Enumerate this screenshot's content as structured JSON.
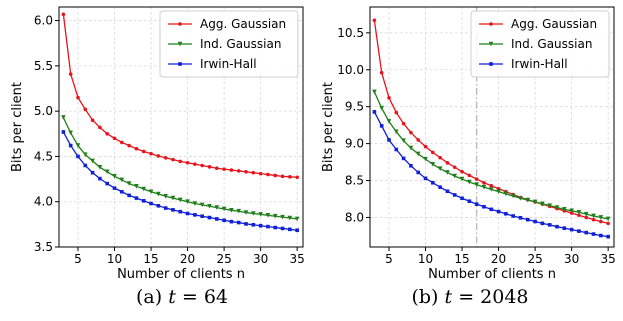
{
  "colors": {
    "agg": "#e8141c",
    "ind": "#1f7f1a",
    "irwin": "#1020d8",
    "grid": "#d6d6d6",
    "vline": "#b4b4b4"
  },
  "chart_data": [
    {
      "type": "line",
      "caption_prefix": "(a)",
      "caption_var": "t",
      "caption_eq": " = 64",
      "xlabel": "Number of clients n",
      "ylabel": "Bits per client",
      "xlim": [
        2.4,
        35.8
      ],
      "ylim": [
        3.5,
        6.15
      ],
      "xticks": [
        5,
        10,
        15,
        20,
        25,
        30,
        35
      ],
      "yticks": [
        3.5,
        4.0,
        4.5,
        5.0,
        5.5,
        6.0
      ],
      "ytick_labels": [
        "3.5",
        "4.0",
        "4.5",
        "5.0",
        "5.5",
        "6.0"
      ],
      "grid": true,
      "legend_position": "top-right",
      "x": [
        3,
        4,
        5,
        6,
        7,
        8,
        9,
        10,
        11,
        12,
        13,
        14,
        15,
        16,
        17,
        18,
        19,
        20,
        21,
        22,
        23,
        24,
        25,
        26,
        27,
        28,
        29,
        30,
        31,
        32,
        33,
        34,
        35
      ],
      "series": [
        {
          "name": "Agg. Gaussian",
          "color_key": "agg",
          "marker": "dot",
          "values": [
            6.07,
            5.41,
            5.15,
            5.02,
            4.9,
            4.82,
            4.75,
            4.7,
            4.655,
            4.62,
            4.585,
            4.555,
            4.53,
            4.505,
            4.485,
            4.465,
            4.445,
            4.43,
            4.415,
            4.4,
            4.385,
            4.37,
            4.36,
            4.35,
            4.34,
            4.33,
            4.32,
            4.31,
            4.3,
            4.29,
            4.28,
            4.275,
            4.27
          ]
        },
        {
          "name": "Ind. Gaussian",
          "color_key": "ind",
          "marker": "triangle",
          "values": [
            4.93,
            4.76,
            4.62,
            4.52,
            4.45,
            4.38,
            4.33,
            4.28,
            4.24,
            4.2,
            4.17,
            4.14,
            4.11,
            4.085,
            4.06,
            4.04,
            4.02,
            4.0,
            3.98,
            3.965,
            3.95,
            3.935,
            3.92,
            3.905,
            3.895,
            3.88,
            3.87,
            3.86,
            3.85,
            3.84,
            3.83,
            3.82,
            3.81
          ]
        },
        {
          "name": "Irwin-Hall",
          "color_key": "irwin",
          "marker": "square",
          "values": [
            4.77,
            4.62,
            4.5,
            4.4,
            4.32,
            4.255,
            4.2,
            4.15,
            4.11,
            4.07,
            4.04,
            4.01,
            3.98,
            3.955,
            3.93,
            3.91,
            3.89,
            3.87,
            3.855,
            3.84,
            3.825,
            3.81,
            3.795,
            3.78,
            3.77,
            3.755,
            3.745,
            3.735,
            3.725,
            3.715,
            3.705,
            3.695,
            3.685
          ]
        }
      ]
    },
    {
      "type": "line",
      "caption_prefix": "(b)",
      "caption_var": "t",
      "caption_eq": " = 2048",
      "xlabel": "Number of clients n",
      "ylabel": "Bits per client",
      "xlim": [
        2.4,
        35.8
      ],
      "ylim": [
        7.6,
        10.85
      ],
      "xticks": [
        5,
        10,
        15,
        20,
        25,
        30,
        35
      ],
      "yticks": [
        8.0,
        8.5,
        9.0,
        9.5,
        10.0,
        10.5
      ],
      "ytick_labels": [
        "8.0",
        "8.5",
        "9.0",
        "9.5",
        "10.0",
        "10.5"
      ],
      "grid": true,
      "legend_position": "top-right",
      "vline_x": 17,
      "x": [
        3,
        4,
        5,
        6,
        7,
        8,
        9,
        10,
        11,
        12,
        13,
        14,
        15,
        16,
        17,
        18,
        19,
        20,
        21,
        22,
        23,
        24,
        25,
        26,
        27,
        28,
        29,
        30,
        31,
        32,
        33,
        34,
        35
      ],
      "series": [
        {
          "name": "Agg. Gaussian",
          "color_key": "agg",
          "marker": "dot",
          "values": [
            10.67,
            9.96,
            9.62,
            9.42,
            9.27,
            9.15,
            9.05,
            8.96,
            8.88,
            8.81,
            8.74,
            8.68,
            8.62,
            8.57,
            8.52,
            8.47,
            8.43,
            8.39,
            8.35,
            8.31,
            8.27,
            8.24,
            8.21,
            8.18,
            8.15,
            8.12,
            8.09,
            8.06,
            8.03,
            8.0,
            7.97,
            7.945,
            7.92
          ]
        },
        {
          "name": "Ind. Gaussian",
          "color_key": "ind",
          "marker": "triangle",
          "values": [
            9.7,
            9.48,
            9.3,
            9.16,
            9.04,
            8.94,
            8.86,
            8.79,
            8.72,
            8.66,
            8.61,
            8.56,
            8.52,
            8.48,
            8.445,
            8.41,
            8.38,
            8.35,
            8.32,
            8.29,
            8.26,
            8.235,
            8.21,
            8.185,
            8.16,
            8.135,
            8.11,
            8.09,
            8.07,
            8.045,
            8.02,
            8.0,
            7.98
          ]
        },
        {
          "name": "Irwin-Hall",
          "color_key": "irwin",
          "marker": "square",
          "values": [
            9.43,
            9.24,
            9.05,
            8.92,
            8.8,
            8.7,
            8.61,
            8.53,
            8.47,
            8.41,
            8.355,
            8.305,
            8.26,
            8.22,
            8.18,
            8.145,
            8.11,
            8.08,
            8.05,
            8.02,
            7.995,
            7.97,
            7.945,
            7.92,
            7.9,
            7.875,
            7.855,
            7.835,
            7.815,
            7.795,
            7.775,
            7.755,
            7.74
          ]
        }
      ]
    }
  ]
}
